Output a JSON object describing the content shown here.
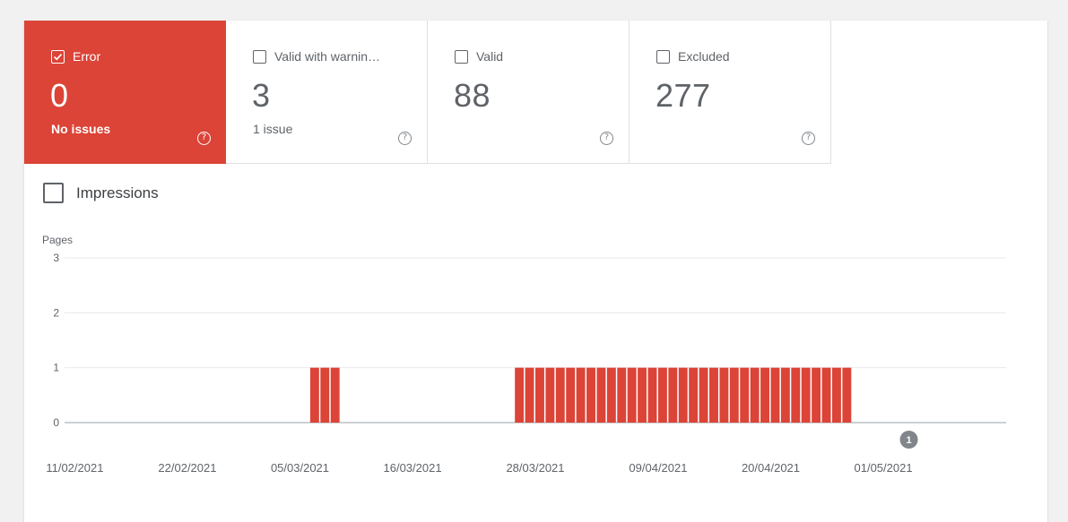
{
  "tiles": [
    {
      "key": "error",
      "label": "Error",
      "value": "0",
      "sub": "No issues",
      "checked": true,
      "color": "#db4437"
    },
    {
      "key": "warning",
      "label": "Valid with warnin…",
      "value": "3",
      "sub": "1 issue",
      "checked": false
    },
    {
      "key": "valid",
      "label": "Valid",
      "value": "88",
      "sub": "",
      "checked": false
    },
    {
      "key": "excluded",
      "label": "Excluded",
      "value": "277",
      "sub": "",
      "checked": false
    }
  ],
  "help_glyph": "?",
  "impressions": {
    "label": "Impressions",
    "checked": false
  },
  "chart_data": {
    "type": "bar",
    "ylabel": "Pages",
    "ylim": [
      0,
      3
    ],
    "y_ticks": [
      0,
      1,
      2,
      3
    ],
    "x_ticks": [
      "11/02/2021",
      "22/02/2021",
      "05/03/2021",
      "16/03/2021",
      "28/03/2021",
      "09/04/2021",
      "20/04/2021",
      "01/05/2021"
    ],
    "x_start": "2021-02-10",
    "x_end": "2021-05-13",
    "bar_color": "#db4437",
    "grid": true,
    "series": [
      {
        "values": [
          {
            "x": "2021-03-06",
            "y": 1
          },
          {
            "x": "2021-03-07",
            "y": 1
          },
          {
            "x": "2021-03-08",
            "y": 1
          },
          {
            "x": "2021-03-26",
            "y": 1
          },
          {
            "x": "2021-03-27",
            "y": 1
          },
          {
            "x": "2021-03-28",
            "y": 1
          },
          {
            "x": "2021-03-29",
            "y": 1
          },
          {
            "x": "2021-03-30",
            "y": 1
          },
          {
            "x": "2021-03-31",
            "y": 1
          },
          {
            "x": "2021-04-01",
            "y": 1
          },
          {
            "x": "2021-04-02",
            "y": 1
          },
          {
            "x": "2021-04-03",
            "y": 1
          },
          {
            "x": "2021-04-04",
            "y": 1
          },
          {
            "x": "2021-04-05",
            "y": 1
          },
          {
            "x": "2021-04-06",
            "y": 1
          },
          {
            "x": "2021-04-07",
            "y": 1
          },
          {
            "x": "2021-04-08",
            "y": 1
          },
          {
            "x": "2021-04-09",
            "y": 1
          },
          {
            "x": "2021-04-10",
            "y": 1
          },
          {
            "x": "2021-04-11",
            "y": 1
          },
          {
            "x": "2021-04-12",
            "y": 1
          },
          {
            "x": "2021-04-13",
            "y": 1
          },
          {
            "x": "2021-04-14",
            "y": 1
          },
          {
            "x": "2021-04-15",
            "y": 1
          },
          {
            "x": "2021-04-16",
            "y": 1
          },
          {
            "x": "2021-04-17",
            "y": 1
          },
          {
            "x": "2021-04-18",
            "y": 1
          },
          {
            "x": "2021-04-19",
            "y": 1
          },
          {
            "x": "2021-04-20",
            "y": 1
          },
          {
            "x": "2021-04-21",
            "y": 1
          },
          {
            "x": "2021-04-22",
            "y": 1
          },
          {
            "x": "2021-04-23",
            "y": 1
          },
          {
            "x": "2021-04-24",
            "y": 1
          },
          {
            "x": "2021-04-25",
            "y": 1
          },
          {
            "x": "2021-04-26",
            "y": 1
          },
          {
            "x": "2021-04-27",
            "y": 1
          }
        ]
      }
    ],
    "annotations": [
      {
        "x": "2021-05-03",
        "label": "1"
      }
    ]
  }
}
